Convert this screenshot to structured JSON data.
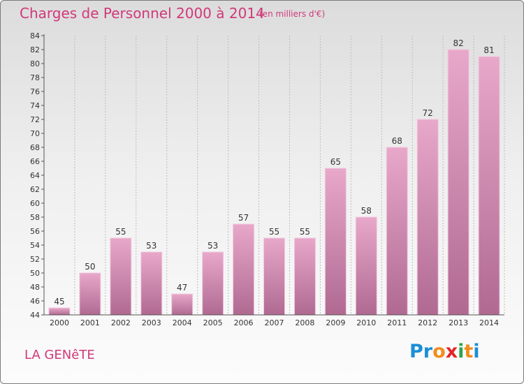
{
  "header": {
    "title": "Charges de Personnel 2000 à 2014",
    "subtitle": "(en milliers d'€)"
  },
  "footer": {
    "commune": "LA GENêTE",
    "logo_letters": [
      "P",
      "r",
      "o",
      "x",
      "i",
      "t",
      "i"
    ],
    "logo_colors": [
      "#1a8fd6",
      "#1a8fd6",
      "#f28c1c",
      "#e3262a",
      "#2aa64a",
      "#f28c1c",
      "#1a8fd6"
    ]
  },
  "colors": {
    "bar_light": "#e8a8ca",
    "bar_dark": "#b06a92",
    "bar_stroke": "#f2c9df",
    "axis": "#555555",
    "grid": "#bdbdbd"
  },
  "chart_data": {
    "type": "bar",
    "title": "Charges de Personnel 2000 à 2014",
    "subtitle": "(en milliers d'€)",
    "categories": [
      "2000",
      "2001",
      "2002",
      "2003",
      "2004",
      "2005",
      "2006",
      "2007",
      "2008",
      "2009",
      "2010",
      "2011",
      "2012",
      "2013",
      "2014"
    ],
    "values": [
      45,
      50,
      55,
      53,
      47,
      53,
      57,
      55,
      55,
      65,
      58,
      68,
      72,
      82,
      81
    ],
    "ylim": [
      44,
      84
    ],
    "yticks": [
      44,
      46,
      48,
      50,
      52,
      54,
      56,
      58,
      60,
      62,
      64,
      66,
      68,
      70,
      72,
      74,
      76,
      78,
      80,
      82,
      84
    ],
    "grid": "vertical",
    "legend": "none"
  }
}
